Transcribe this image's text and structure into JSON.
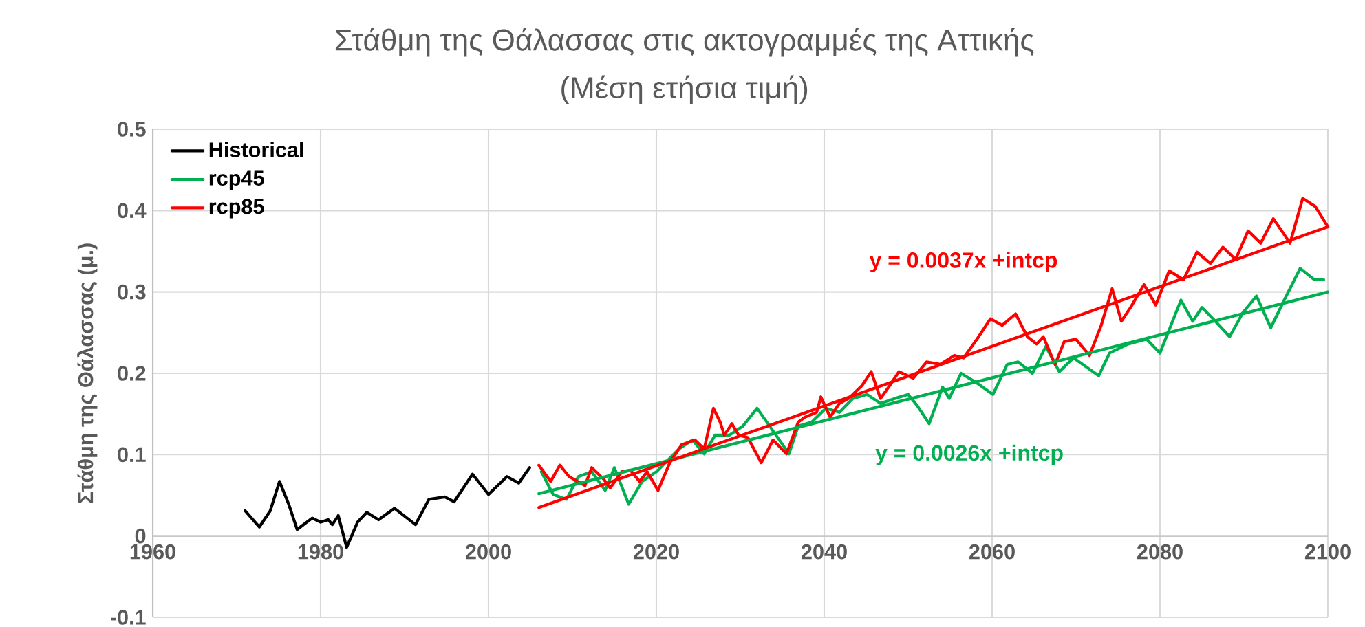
{
  "chart_data": {
    "type": "line",
    "title": "Στάθμη της Θάλασσας στις ακτογραμμές της Αττικής",
    "subtitle": "(Μέση ετήσια τιμή)",
    "ylabel": "Στάθμη της Θάλασσας (μ.)",
    "xlim": [
      1960,
      2100
    ],
    "xticks": [
      1960,
      1980,
      2000,
      2020,
      2040,
      2060,
      2080,
      2100
    ],
    "ylim": [
      -0.1,
      0.5
    ],
    "yticks": [
      -0.1,
      0,
      0.1,
      0.2,
      0.3,
      0.4,
      0.5
    ],
    "grid": true,
    "legend": "top left",
    "line_style": "solid",
    "marker": "none",
    "series": [
      {
        "name": "Historical",
        "color": "#000000",
        "x": [
          1971.0,
          1972.7,
          1974.0,
          1975.1,
          1976.2,
          1977.2,
          1979.0,
          1980.0,
          1980.9,
          1981.4,
          1982.1,
          1983.1,
          1984.4,
          1985.5,
          1986.9,
          1988.8,
          1991.3,
          1992.9,
          1994.8,
          1995.9,
          1998.1,
          2000.0,
          2002.2,
          2003.6,
          2004.9
        ],
        "values": [
          0.031,
          0.011,
          0.031,
          0.067,
          0.039,
          0.008,
          0.022,
          0.017,
          0.02,
          0.014,
          0.025,
          -0.014,
          0.017,
          0.029,
          0.02,
          0.034,
          0.014,
          0.045,
          0.048,
          0.042,
          0.076,
          0.051,
          0.073,
          0.065,
          0.084
        ]
      },
      {
        "name": "rcp45",
        "color": "#00b050",
        "x": [
          2006.3,
          2007.7,
          2009.3,
          2010.7,
          2012.3,
          2013.9,
          2015.0,
          2016.7,
          2018.3,
          2020.0,
          2022.7,
          2024.3,
          2025.7,
          2027.0,
          2028.7,
          2030.3,
          2032.0,
          2033.5,
          2035.8,
          2036.9,
          2038.5,
          2040.2,
          2041.8,
          2043.4,
          2045.1,
          2046.7,
          2048.4,
          2050.0,
          2051.1,
          2052.5,
          2054.1,
          2054.9,
          2056.3,
          2058.2,
          2060.1,
          2061.8,
          2063.1,
          2064.8,
          2066.4,
          2068.0,
          2069.7,
          2072.7,
          2074.0,
          2076.2,
          2078.4,
          2080.0,
          2082.5,
          2083.9,
          2085.0,
          2086.6,
          2088.3,
          2089.9,
          2091.5,
          2093.2,
          2094.8,
          2096.7,
          2098.4,
          2099.5
        ],
        "values": [
          0.079,
          0.051,
          0.045,
          0.073,
          0.079,
          0.056,
          0.084,
          0.039,
          0.067,
          0.079,
          0.107,
          0.118,
          0.101,
          0.124,
          0.124,
          0.135,
          0.157,
          0.135,
          0.101,
          0.135,
          0.14,
          0.157,
          0.152,
          0.169,
          0.174,
          0.163,
          0.169,
          0.174,
          0.16,
          0.138,
          0.183,
          0.169,
          0.2,
          0.188,
          0.174,
          0.211,
          0.214,
          0.2,
          0.233,
          0.202,
          0.219,
          0.197,
          0.225,
          0.236,
          0.242,
          0.225,
          0.29,
          0.264,
          0.281,
          0.264,
          0.245,
          0.275,
          0.295,
          0.256,
          0.29,
          0.329,
          0.315,
          0.315
        ]
      },
      {
        "name": "rcp85",
        "color": "#ff0000",
        "x": [
          2006.0,
          2007.4,
          2008.5,
          2009.6,
          2011.5,
          2012.3,
          2013.7,
          2014.5,
          2015.9,
          2016.9,
          2018.0,
          2018.9,
          2020.2,
          2021.6,
          2023.0,
          2024.6,
          2025.7,
          2026.8,
          2027.6,
          2028.1,
          2029.0,
          2029.8,
          2030.9,
          2032.5,
          2033.9,
          2035.5,
          2036.9,
          2037.7,
          2039.1,
          2039.6,
          2040.7,
          2041.8,
          2042.9,
          2044.5,
          2045.6,
          2046.7,
          2047.8,
          2048.9,
          2050.6,
          2052.2,
          2053.8,
          2055.5,
          2056.6,
          2058.2,
          2059.8,
          2061.2,
          2062.8,
          2064.2,
          2065.3,
          2066.1,
          2067.5,
          2068.6,
          2070.0,
          2071.6,
          2073.0,
          2074.3,
          2075.4,
          2076.5,
          2078.1,
          2079.5,
          2081.1,
          2082.8,
          2084.4,
          2086.0,
          2087.5,
          2089.0,
          2090.5,
          2092.0,
          2093.5,
          2095.5,
          2097.0,
          2098.5,
          2100.0
        ],
        "values": [
          0.087,
          0.067,
          0.087,
          0.073,
          0.062,
          0.084,
          0.07,
          0.059,
          0.079,
          0.081,
          0.067,
          0.079,
          0.056,
          0.09,
          0.112,
          0.118,
          0.107,
          0.157,
          0.14,
          0.124,
          0.138,
          0.124,
          0.121,
          0.09,
          0.118,
          0.101,
          0.14,
          0.146,
          0.152,
          0.171,
          0.146,
          0.163,
          0.169,
          0.185,
          0.202,
          0.169,
          0.185,
          0.202,
          0.194,
          0.214,
          0.211,
          0.222,
          0.219,
          0.242,
          0.267,
          0.259,
          0.273,
          0.245,
          0.236,
          0.245,
          0.211,
          0.239,
          0.242,
          0.222,
          0.259,
          0.304,
          0.264,
          0.281,
          0.309,
          0.284,
          0.326,
          0.315,
          0.349,
          0.335,
          0.355,
          0.34,
          0.375,
          0.36,
          0.39,
          0.36,
          0.415,
          0.405,
          0.38
        ]
      },
      {
        "color": "#00b050",
        "x": [
          2006,
          2100
        ],
        "values": [
          0.052,
          0.3
        ]
      },
      {
        "color": "#ff0000",
        "x": [
          2006,
          2100
        ],
        "values": [
          0.035,
          0.38
        ]
      }
    ],
    "annotations": [
      "y = 0.0037x +intcp",
      "y = 0.0026x +intcp"
    ]
  }
}
